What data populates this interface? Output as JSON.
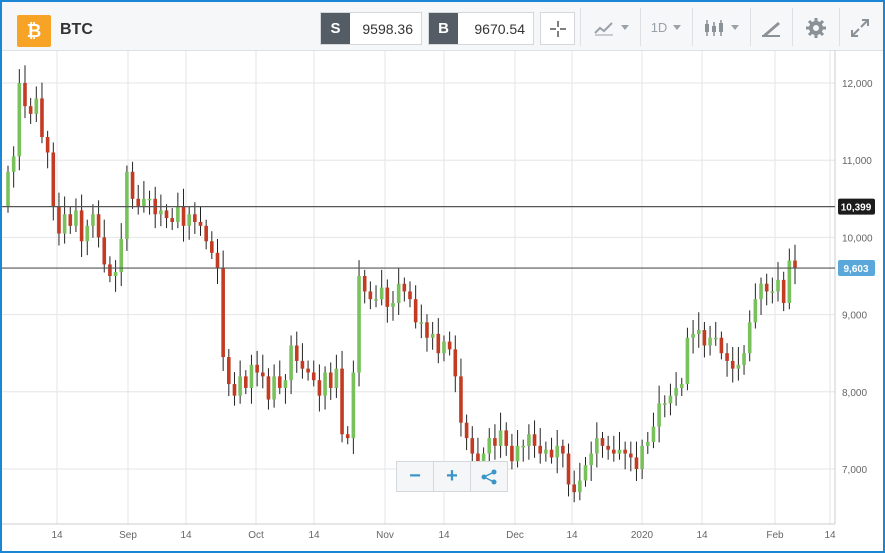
{
  "header": {
    "coin_glyph": "₿",
    "symbol": "BTC",
    "sell_tag": "S",
    "sell_price": "9598.36",
    "buy_tag": "B",
    "buy_price": "9670.54",
    "timeframe": "1D"
  },
  "icons": [
    "bitcoin-icon",
    "crosshair-icon",
    "chart-type-icon",
    "candlestick-icon",
    "drawing-icon",
    "gear-icon",
    "expand-icon",
    "zoom-out-icon",
    "zoom-in-icon",
    "share-icon"
  ],
  "zoom": {
    "minus": "−",
    "plus": "+"
  },
  "colors": {
    "up": "#79c15d",
    "down": "#c23b22",
    "grid": "#e4e6e8",
    "accent": "#1a86d4",
    "line_high": "#333333",
    "current_tag": "#5aa7dc"
  },
  "chart_data": {
    "type": "candlestick",
    "x_ticks": [
      "14",
      "Sep",
      "14",
      "Oct",
      "14",
      "Nov",
      "14",
      "Dec",
      "14",
      "2020",
      "14",
      "Feb",
      "14"
    ],
    "y_ticks": [
      "12,000",
      "11,000",
      "10,000",
      "9,000",
      "8,000",
      "7,000"
    ],
    "y_range": [
      6300,
      12400
    ],
    "horizontal_levels": [
      {
        "label": "10,399",
        "value": 10399
      },
      {
        "label": "9,603",
        "value": 9603
      }
    ],
    "close_series": [
      10850,
      11050,
      12000,
      11700,
      11600,
      11800,
      11300,
      11100,
      10400,
      10050,
      10300,
      10150,
      10350,
      9950,
      10150,
      10300,
      10000,
      9650,
      9500,
      9550,
      9980,
      10850,
      10500,
      10400,
      10500,
      10500,
      10300,
      10350,
      10250,
      10200,
      10400,
      10150,
      10300,
      10200,
      10150,
      9950,
      9800,
      9600,
      8450,
      8100,
      7950,
      8200,
      8050,
      8350,
      8250,
      8200,
      7900,
      8200,
      8050,
      8150,
      8600,
      8400,
      8300,
      8250,
      8150,
      7950,
      8250,
      8050,
      8300,
      7450,
      7400,
      8250,
      9500,
      9300,
      9200,
      9200,
      9350,
      9100,
      9150,
      9400,
      9300,
      9200,
      8900,
      8900,
      8700,
      8750,
      8500,
      8650,
      8550,
      8200,
      7600,
      7400,
      7200,
      7000,
      7200,
      7400,
      7300,
      7500,
      7300,
      7100,
      7300,
      7300,
      7450,
      7300,
      7200,
      7250,
      7150,
      7300,
      7200,
      6800,
      6700,
      6850,
      7050,
      7200,
      7400,
      7300,
      7250,
      7200,
      7250,
      7200,
      7150,
      7000,
      7300,
      7350,
      7550,
      7850,
      7850,
      7950,
      8050,
      8100,
      8700,
      8750,
      8800,
      8600,
      8700,
      8700,
      8500,
      8400,
      8300,
      8350,
      8500,
      8900,
      9200,
      9400,
      9300,
      9300,
      9450,
      9150,
      9700,
      9600
    ],
    "grid": true
  }
}
